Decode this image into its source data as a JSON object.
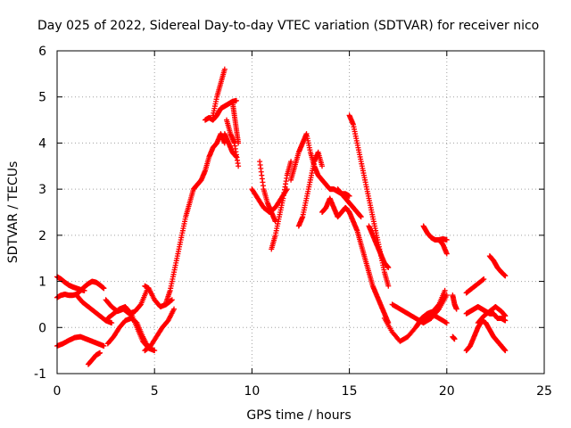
{
  "chart_data": {
    "type": "scatter",
    "title": "Day 025 of 2022, Sidereal Day-to-day VTEC variation (SDTVAR) for receiver nico",
    "xlabel": "GPS time / hours",
    "ylabel": "SDTVAR / TECUs",
    "xlim": [
      0,
      25
    ],
    "ylim": [
      -1,
      6
    ],
    "xticks": [
      "0",
      "5",
      "10",
      "15",
      "20",
      "25"
    ],
    "yticks": [
      "-1",
      "0",
      "1",
      "2",
      "3",
      "4",
      "5",
      "6"
    ],
    "grid": true,
    "marker": "+",
    "color": "#ff0000",
    "series": [
      {
        "name": "trace-1",
        "x": [
          0.0,
          0.2,
          0.4,
          0.6,
          0.8,
          1.0,
          1.2,
          1.4,
          1.6,
          1.8,
          2.0,
          2.2,
          2.4
        ],
        "y": [
          0.65,
          0.7,
          0.72,
          0.7,
          0.7,
          0.72,
          0.8,
          0.88,
          0.95,
          1.0,
          0.98,
          0.92,
          0.85
        ]
      },
      {
        "name": "trace-2",
        "x": [
          0.0,
          0.2,
          0.4,
          0.6,
          0.8,
          1.0,
          1.2,
          1.4
        ],
        "y": [
          1.1,
          1.05,
          0.98,
          0.92,
          0.88,
          0.85,
          0.82,
          0.8
        ]
      },
      {
        "name": "trace-3",
        "x": [
          0.0,
          0.3,
          0.6,
          0.9,
          1.2,
          1.5,
          1.8,
          2.1,
          2.4
        ],
        "y": [
          -0.4,
          -0.35,
          -0.28,
          -0.22,
          -0.2,
          -0.25,
          -0.3,
          -0.35,
          -0.4
        ]
      },
      {
        "name": "trace-4",
        "x": [
          1.0,
          1.3,
          1.6,
          1.9,
          2.2,
          2.5,
          2.8
        ],
        "y": [
          0.7,
          0.55,
          0.45,
          0.35,
          0.25,
          0.15,
          0.1
        ]
      },
      {
        "name": "trace-5",
        "x": [
          1.6,
          1.8,
          2.0,
          2.2
        ],
        "y": [
          -0.8,
          -0.7,
          -0.6,
          -0.55
        ]
      },
      {
        "name": "trace-6",
        "x": [
          2.5,
          2.8,
          3.1,
          3.4,
          3.7,
          4.0,
          4.3,
          4.6
        ],
        "y": [
          0.6,
          0.45,
          0.35,
          0.4,
          0.3,
          0.35,
          0.5,
          0.8
        ]
      },
      {
        "name": "trace-7",
        "x": [
          2.6,
          2.9,
          3.2,
          3.5,
          3.8,
          4.1,
          4.4,
          4.7,
          5.0
        ],
        "y": [
          -0.35,
          -0.2,
          0.0,
          0.15,
          0.2,
          0.1,
          -0.2,
          -0.45,
          -0.5
        ]
      },
      {
        "name": "trace-8",
        "x": [
          2.6,
          2.9,
          3.2,
          3.5,
          3.8,
          4.1,
          4.4,
          4.7
        ],
        "y": [
          0.2,
          0.3,
          0.4,
          0.45,
          0.3,
          0.0,
          -0.3,
          -0.45
        ]
      },
      {
        "name": "trace-9",
        "x": [
          4.5,
          4.7,
          5.0,
          5.3,
          5.6,
          5.9
        ],
        "y": [
          0.9,
          0.85,
          0.6,
          0.45,
          0.5,
          0.6
        ]
      },
      {
        "name": "trace-10",
        "x": [
          4.5,
          4.8,
          5.1,
          5.4,
          5.7,
          6.0
        ],
        "y": [
          -0.5,
          -0.4,
          -0.2,
          0.0,
          0.15,
          0.4
        ]
      },
      {
        "name": "trace-11",
        "x": [
          5.6,
          5.8,
          6.0,
          6.2,
          6.4,
          6.6,
          6.8,
          7.0,
          7.2,
          7.4,
          7.6,
          7.8,
          8.0,
          8.2,
          8.4,
          8.6
        ],
        "y": [
          0.55,
          0.8,
          1.2,
          1.6,
          2.0,
          2.4,
          2.7,
          3.0,
          3.1,
          3.2,
          3.4,
          3.7,
          3.9,
          4.0,
          4.2,
          4.0
        ]
      },
      {
        "name": "trace-12",
        "x": [
          7.6,
          7.8,
          8.0,
          8.2,
          8.4,
          8.6,
          8.8,
          9.0,
          9.2
        ],
        "y": [
          4.5,
          4.55,
          4.5,
          4.6,
          4.75,
          4.8,
          4.85,
          4.9,
          4.92
        ]
      },
      {
        "name": "trace-13",
        "x": [
          8.0,
          8.2,
          8.4,
          8.6
        ],
        "y": [
          4.6,
          5.0,
          5.3,
          5.6
        ]
      },
      {
        "name": "trace-14",
        "x": [
          8.7,
          8.9,
          9.1,
          9.3
        ],
        "y": [
          4.5,
          4.2,
          4.0,
          3.5
        ]
      },
      {
        "name": "trace-15",
        "x": [
          8.6,
          8.8,
          9.0,
          9.2
        ],
        "y": [
          4.2,
          4.0,
          3.8,
          3.7
        ]
      },
      {
        "name": "trace-16",
        "x": [
          9.0,
          9.1,
          9.2,
          9.3
        ],
        "y": [
          4.9,
          4.6,
          4.3,
          4.0
        ]
      },
      {
        "name": "trace-17",
        "x": [
          10.0,
          10.3,
          10.6,
          10.9,
          11.2,
          11.5,
          11.8
        ],
        "y": [
          3.0,
          2.8,
          2.6,
          2.5,
          2.6,
          2.8,
          3.0
        ]
      },
      {
        "name": "trace-18",
        "x": [
          10.4,
          10.6,
          10.8,
          11.0,
          11.2
        ],
        "y": [
          3.6,
          3.0,
          2.7,
          2.5,
          2.3
        ]
      },
      {
        "name": "trace-19",
        "x": [
          11.0,
          11.2,
          11.4,
          11.6,
          11.8,
          12.0
        ],
        "y": [
          1.7,
          2.0,
          2.4,
          2.8,
          3.3,
          3.6
        ]
      },
      {
        "name": "trace-20",
        "x": [
          12.0,
          12.2,
          12.4,
          12.6,
          12.8,
          13.0,
          13.2,
          13.4,
          13.6,
          13.8,
          14.0,
          14.2,
          14.4,
          14.6,
          14.8,
          15.0
        ],
        "y": [
          3.2,
          3.5,
          3.8,
          4.0,
          4.2,
          3.8,
          3.5,
          3.3,
          3.2,
          3.1,
          3.0,
          3.0,
          2.95,
          2.9,
          2.9,
          2.85
        ]
      },
      {
        "name": "trace-21",
        "x": [
          12.4,
          12.6,
          12.8,
          13.0,
          13.2,
          13.4,
          13.6
        ],
        "y": [
          2.2,
          2.4,
          2.8,
          3.2,
          3.6,
          3.8,
          3.5
        ]
      },
      {
        "name": "trace-22",
        "x": [
          13.6,
          13.8,
          14.0,
          14.2,
          14.4,
          14.6,
          14.8,
          15.0,
          15.2,
          15.4,
          15.6,
          15.8,
          16.0,
          16.2,
          16.4,
          16.6,
          16.8,
          17.0
        ],
        "y": [
          2.5,
          2.6,
          2.8,
          2.6,
          2.4,
          2.5,
          2.6,
          2.5,
          2.3,
          2.1,
          1.8,
          1.5,
          1.2,
          0.9,
          0.7,
          0.5,
          0.3,
          0.1
        ]
      },
      {
        "name": "trace-23",
        "x": [
          14.4,
          14.6,
          14.8,
          15.0,
          15.2,
          15.4,
          15.6
        ],
        "y": [
          3.0,
          2.9,
          2.8,
          2.7,
          2.6,
          2.5,
          2.4
        ]
      },
      {
        "name": "trace-24",
        "x": [
          15.0,
          15.2,
          15.4,
          15.6,
          15.8,
          16.0,
          16.2,
          16.4,
          16.6,
          16.8,
          17.0
        ],
        "y": [
          4.6,
          4.4,
          4.0,
          3.6,
          3.2,
          2.8,
          2.4,
          2.0,
          1.6,
          1.2,
          0.9
        ]
      },
      {
        "name": "trace-25",
        "x": [
          16.0,
          16.2,
          16.4,
          16.6,
          16.8,
          17.0
        ],
        "y": [
          2.2,
          2.0,
          1.8,
          1.6,
          1.4,
          1.3
        ]
      },
      {
        "name": "trace-26",
        "x": [
          16.8,
          17.2,
          17.6,
          18.0,
          18.4,
          18.8,
          19.2,
          19.6,
          20.0
        ],
        "y": [
          0.2,
          -0.1,
          -0.3,
          -0.2,
          0.0,
          0.2,
          0.3,
          0.2,
          0.1
        ]
      },
      {
        "name": "trace-27",
        "x": [
          17.2,
          17.6,
          18.0,
          18.4,
          18.8,
          19.2,
          19.6,
          20.0
        ],
        "y": [
          0.5,
          0.4,
          0.3,
          0.2,
          0.1,
          0.2,
          0.4,
          0.7
        ]
      },
      {
        "name": "trace-28",
        "x": [
          18.4,
          18.7,
          19.0,
          19.3,
          19.6,
          19.9
        ],
        "y": [
          0.0,
          0.2,
          0.3,
          0.35,
          0.5,
          0.8
        ]
      },
      {
        "name": "trace-29",
        "x": [
          18.8,
          19.0,
          19.2,
          19.4,
          19.6,
          19.8,
          20.0
        ],
        "y": [
          2.2,
          2.05,
          1.95,
          1.9,
          1.9,
          1.92,
          1.9
        ]
      },
      {
        "name": "trace-30",
        "x": [
          19.6,
          19.8,
          20.0
        ],
        "y": [
          1.9,
          1.8,
          1.6
        ]
      },
      {
        "name": "trace-31",
        "x": [
          20.3,
          20.4,
          20.5
        ],
        "y": [
          0.7,
          0.5,
          0.4
        ]
      },
      {
        "name": "trace-32",
        "x": [
          20.3,
          20.4
        ],
        "y": [
          -0.2,
          -0.25
        ]
      },
      {
        "name": "trace-33",
        "x": [
          21.0,
          21.3,
          21.6,
          21.9
        ],
        "y": [
          0.75,
          0.85,
          0.95,
          1.05
        ]
      },
      {
        "name": "trace-34",
        "x": [
          21.0,
          21.2,
          21.4,
          21.6,
          21.8,
          22.0,
          22.2,
          22.4,
          22.6,
          22.8,
          23.0
        ],
        "y": [
          0.3,
          0.35,
          0.4,
          0.45,
          0.4,
          0.35,
          0.3,
          0.3,
          0.2,
          0.2,
          0.15
        ]
      },
      {
        "name": "trace-35",
        "x": [
          21.0,
          21.2,
          21.4,
          21.6,
          21.8,
          22.0,
          22.2,
          22.4,
          22.6,
          22.8,
          23.0
        ],
        "y": [
          -0.5,
          -0.4,
          -0.2,
          0.0,
          0.15,
          0.1,
          -0.05,
          -0.2,
          -0.3,
          -0.4,
          -0.5
        ]
      },
      {
        "name": "trace-36",
        "x": [
          21.6,
          21.9,
          22.2,
          22.5,
          22.8,
          23.0
        ],
        "y": [
          0.1,
          0.25,
          0.35,
          0.45,
          0.35,
          0.25
        ]
      },
      {
        "name": "trace-37",
        "x": [
          22.2,
          22.4,
          22.6,
          22.8,
          23.0
        ],
        "y": [
          1.55,
          1.45,
          1.3,
          1.2,
          1.12
        ]
      }
    ]
  }
}
